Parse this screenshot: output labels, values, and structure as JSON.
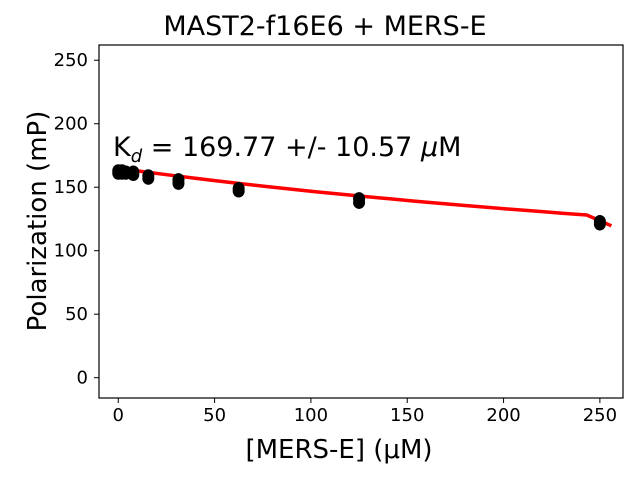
{
  "chart_data": {
    "type": "scatter",
    "title": "MAST2-f16E6 + MERS-E",
    "xlabel": "[MERS-E] (μM)",
    "ylabel": "Polarization (mP)",
    "xlim": [
      -10,
      262
    ],
    "ylim": [
      -16,
      262
    ],
    "xticks": [
      0,
      50,
      100,
      150,
      200,
      250
    ],
    "yticks": [
      0,
      50,
      100,
      150,
      200,
      250
    ],
    "grid": false,
    "annotation": {
      "prefix": "K",
      "subscript": "d",
      "text": " = 169.77 +/- 10.57 ",
      "unit_symbol": "μ",
      "unit": "M"
    },
    "series": [
      {
        "kind": "points",
        "color": "#000000",
        "points": [
          [
            0,
            161
          ],
          [
            0,
            163
          ],
          [
            0.98,
            162
          ],
          [
            1.95,
            161
          ],
          [
            1.95,
            163
          ],
          [
            3.9,
            162
          ],
          [
            3.9,
            161
          ],
          [
            7.8,
            160
          ],
          [
            7.8,
            162
          ],
          [
            15.6,
            157
          ],
          [
            15.6,
            159
          ],
          [
            31.25,
            153
          ],
          [
            31.25,
            156
          ],
          [
            62.5,
            147
          ],
          [
            62.5,
            149
          ],
          [
            125,
            138
          ],
          [
            125,
            141
          ],
          [
            250,
            121
          ],
          [
            250,
            123
          ]
        ]
      },
      {
        "kind": "fit",
        "color": "#ff0000",
        "x": [
          0,
          12.8,
          25.6,
          38.4,
          51.2,
          64,
          76.8,
          89.6,
          102.4,
          115.2,
          128,
          140.8,
          153.6,
          166.4,
          179.2,
          192,
          204.8,
          217.6,
          230.4,
          243.2,
          256
        ],
        "y": [
          164.9,
          162.3,
          159.8,
          157.3,
          155.0,
          152.8,
          150.6,
          148.5,
          146.5,
          144.6,
          142.7,
          140.9,
          139.1,
          137.4,
          135.7,
          134.1,
          132.5,
          131.0,
          129.5,
          128.1,
          119.6
        ]
      }
    ]
  }
}
